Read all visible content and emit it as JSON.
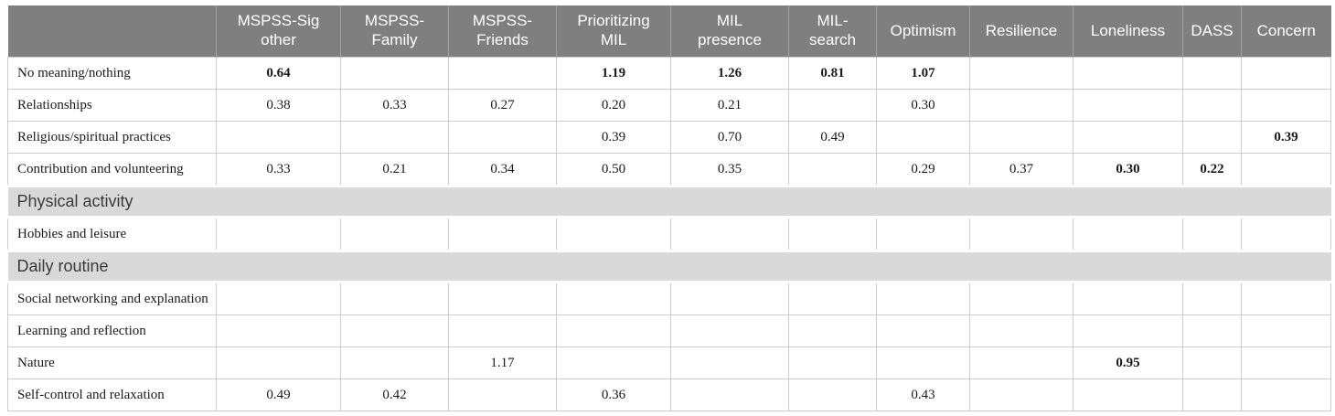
{
  "colors": {
    "header_bg": "#7f7f7f",
    "header_text": "#ffffff",
    "header_divider": "#9e9e9e",
    "section_bg": "#d9d9d9",
    "section_text": "#3a3a3a",
    "grid_line": "#cccccc",
    "body_text": "#1a1a1a"
  },
  "table": {
    "columns": [
      "",
      "MSPSS-Sig\nother",
      "MSPSS-\nFamily",
      "MSPSS-\nFriends",
      "Prioritizing\nMIL",
      "MIL\npresence",
      "MIL-\nsearch",
      "Optimism",
      "Resilience",
      "Loneliness",
      "DASS",
      "Concern"
    ],
    "rows": [
      {
        "type": "data",
        "label": "No meaning/nothing",
        "cells": [
          {
            "v": "0.64",
            "b": true
          },
          {
            "v": ""
          },
          {
            "v": ""
          },
          {
            "v": "1.19",
            "b": true
          },
          {
            "v": "1.26",
            "b": true
          },
          {
            "v": "0.81",
            "b": true
          },
          {
            "v": "1.07",
            "b": true
          },
          {
            "v": ""
          },
          {
            "v": ""
          },
          {
            "v": ""
          },
          {
            "v": ""
          }
        ]
      },
      {
        "type": "data",
        "label": "Relationships",
        "cells": [
          {
            "v": "0.38"
          },
          {
            "v": "0.33"
          },
          {
            "v": "0.27"
          },
          {
            "v": "0.20"
          },
          {
            "v": "0.21"
          },
          {
            "v": ""
          },
          {
            "v": "0.30"
          },
          {
            "v": ""
          },
          {
            "v": ""
          },
          {
            "v": ""
          },
          {
            "v": ""
          }
        ]
      },
      {
        "type": "data",
        "label": "Religious/spiritual practices",
        "cells": [
          {
            "v": ""
          },
          {
            "v": ""
          },
          {
            "v": ""
          },
          {
            "v": "0.39"
          },
          {
            "v": "0.70"
          },
          {
            "v": "0.49"
          },
          {
            "v": ""
          },
          {
            "v": ""
          },
          {
            "v": ""
          },
          {
            "v": ""
          },
          {
            "v": "0.39",
            "b": true
          }
        ]
      },
      {
        "type": "data",
        "label": "Contribution and volunteering",
        "cells": [
          {
            "v": "0.33"
          },
          {
            "v": "0.21"
          },
          {
            "v": "0.34"
          },
          {
            "v": "0.50"
          },
          {
            "v": "0.35"
          },
          {
            "v": ""
          },
          {
            "v": "0.29"
          },
          {
            "v": "0.37"
          },
          {
            "v": "0.30",
            "b": true
          },
          {
            "v": "0.22",
            "b": true
          },
          {
            "v": ""
          }
        ]
      },
      {
        "type": "section",
        "label": "Physical activity"
      },
      {
        "type": "data",
        "label": "Hobbies and leisure",
        "cells": [
          {
            "v": ""
          },
          {
            "v": ""
          },
          {
            "v": ""
          },
          {
            "v": ""
          },
          {
            "v": ""
          },
          {
            "v": ""
          },
          {
            "v": ""
          },
          {
            "v": ""
          },
          {
            "v": ""
          },
          {
            "v": ""
          },
          {
            "v": ""
          }
        ]
      },
      {
        "type": "section",
        "label": "Daily routine"
      },
      {
        "type": "data",
        "label": "Social networking and explanation",
        "cells": [
          {
            "v": ""
          },
          {
            "v": ""
          },
          {
            "v": ""
          },
          {
            "v": ""
          },
          {
            "v": ""
          },
          {
            "v": ""
          },
          {
            "v": ""
          },
          {
            "v": ""
          },
          {
            "v": ""
          },
          {
            "v": ""
          },
          {
            "v": ""
          }
        ]
      },
      {
        "type": "data",
        "label": "Learning and reflection",
        "cells": [
          {
            "v": ""
          },
          {
            "v": ""
          },
          {
            "v": ""
          },
          {
            "v": ""
          },
          {
            "v": ""
          },
          {
            "v": ""
          },
          {
            "v": ""
          },
          {
            "v": ""
          },
          {
            "v": ""
          },
          {
            "v": ""
          },
          {
            "v": ""
          }
        ]
      },
      {
        "type": "data",
        "label": "Nature",
        "cells": [
          {
            "v": ""
          },
          {
            "v": ""
          },
          {
            "v": "1.17"
          },
          {
            "v": ""
          },
          {
            "v": ""
          },
          {
            "v": ""
          },
          {
            "v": ""
          },
          {
            "v": ""
          },
          {
            "v": "0.95",
            "b": true
          },
          {
            "v": ""
          },
          {
            "v": ""
          }
        ]
      },
      {
        "type": "data",
        "label": "Self-control and relaxation",
        "cells": [
          {
            "v": "0.49"
          },
          {
            "v": "0.42"
          },
          {
            "v": ""
          },
          {
            "v": "0.36"
          },
          {
            "v": ""
          },
          {
            "v": ""
          },
          {
            "v": "0.43"
          },
          {
            "v": ""
          },
          {
            "v": ""
          },
          {
            "v": ""
          },
          {
            "v": ""
          }
        ]
      }
    ]
  }
}
